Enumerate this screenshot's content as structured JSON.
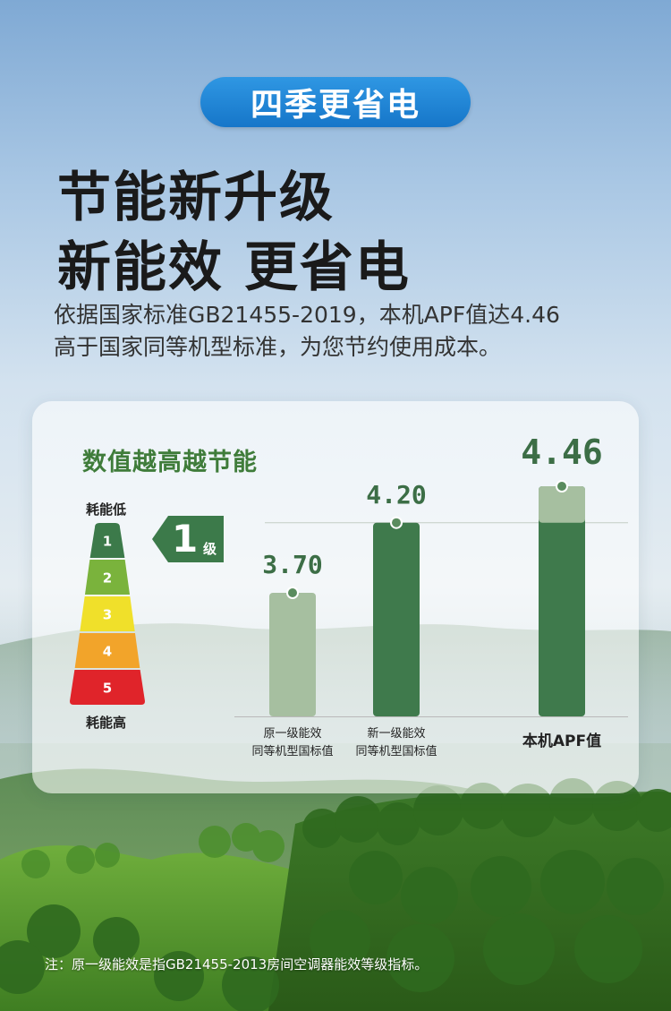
{
  "badge": "四季更省电",
  "headline": {
    "line1": "节能新升级",
    "line2": "新能效 更省电"
  },
  "description": {
    "line1": "依据国家标准GB21455-2019，本机APF值达4.46",
    "line2": "高于国家同等机型标准，为您节约使用成本。"
  },
  "card": {
    "title": "数值越高越节能",
    "energy_scale": {
      "low_label": "耗能低",
      "high_label": "耗能高",
      "grades": [
        "1",
        "2",
        "3",
        "4",
        "5"
      ],
      "grade_colors": [
        "#3c7a4a",
        "#7ab33c",
        "#f0e02a",
        "#f2a42a",
        "#e0242a"
      ],
      "current_grade": "1",
      "current_grade_unit": "级"
    }
  },
  "chart_data": {
    "type": "bar",
    "categories": [
      [
        "原一级能效",
        "同等机型国标值"
      ],
      [
        "新一级能效",
        "同等机型国标值"
      ],
      [
        "本机APF值"
      ]
    ],
    "values": [
      3.7,
      4.2,
      4.46
    ],
    "value_labels": [
      "3.70",
      "4.20",
      "4.46"
    ],
    "colors": [
      "#a6bfa0",
      "#3f7a4c",
      "#3f7a4c"
    ],
    "highlight_top_color": "#a6bfa0",
    "reference_line": 4.2
  },
  "footnote": "注：原一级能效是指GB21455-2013房间空调器能效等级指标。"
}
